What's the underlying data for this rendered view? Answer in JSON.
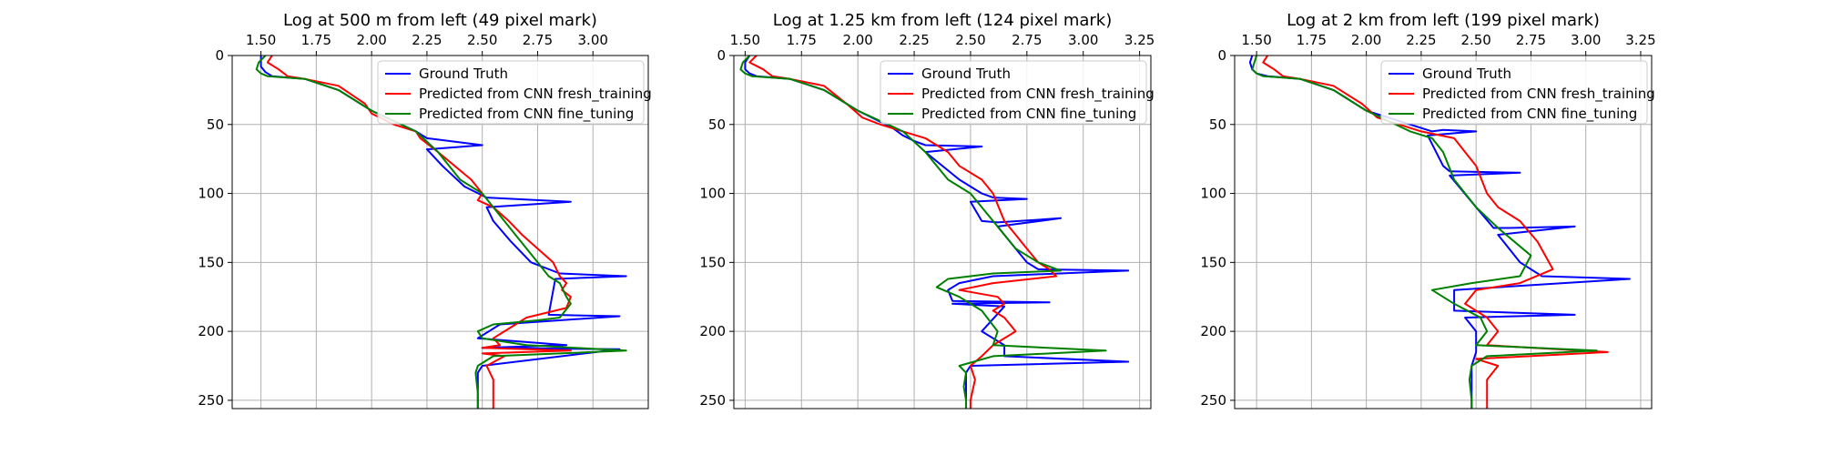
{
  "chart_data": [
    {
      "type": "line",
      "title": "Log at 500 m from left (49 pixel mark)",
      "xlim": [
        1.37,
        3.25
      ],
      "ylim": [
        256,
        0
      ],
      "xticks": [
        "1.50",
        "1.75",
        "2.00",
        "2.25",
        "2.50",
        "2.75",
        "3.00"
      ],
      "yticks": [
        "0",
        "50",
        "100",
        "150",
        "200",
        "250"
      ],
      "grid": true,
      "legend_position": "top-right",
      "series": [
        {
          "name": "Ground Truth",
          "color": "#0000ff",
          "x": [
            1.5,
            1.5,
            1.52,
            1.55,
            1.7,
            1.85,
            2.0,
            2.2,
            2.25,
            2.5,
            2.25,
            2.32,
            2.42,
            2.52,
            2.9,
            2.52,
            2.55,
            2.63,
            2.72,
            2.85,
            3.15,
            2.83,
            2.8,
            3.12,
            2.58,
            2.48,
            2.88,
            2.5,
            3.12,
            2.5,
            2.48,
            2.48,
            2.48
          ],
          "y": [
            0,
            8,
            12,
            15,
            17,
            25,
            40,
            55,
            60,
            65,
            68,
            80,
            95,
            103,
            106,
            110,
            120,
            135,
            150,
            158,
            160,
            162,
            188,
            189,
            195,
            205,
            210,
            212,
            213,
            225,
            230,
            245,
            256
          ]
        },
        {
          "name": "Predicted from CNN fresh_training",
          "color": "#ff0000",
          "x": [
            1.55,
            1.53,
            1.58,
            1.62,
            1.7,
            1.85,
            1.97,
            2.0,
            2.1,
            2.2,
            2.22,
            2.3,
            2.45,
            2.5,
            2.48,
            2.55,
            2.62,
            2.68,
            2.75,
            2.82,
            2.85,
            2.88,
            2.86,
            2.9,
            2.88,
            2.7,
            2.6,
            2.55,
            2.58,
            2.5,
            2.9,
            2.5,
            2.6,
            2.52,
            2.55,
            2.55,
            2.55
          ],
          "y": [
            0,
            5,
            10,
            15,
            17,
            22,
            35,
            42,
            50,
            55,
            60,
            70,
            90,
            100,
            105,
            110,
            120,
            130,
            140,
            150,
            160,
            165,
            170,
            175,
            183,
            190,
            200,
            205,
            210,
            212,
            214,
            216,
            218,
            225,
            235,
            250,
            256
          ]
        },
        {
          "name": "Predicted from CNN fine_tuning",
          "color": "#008000",
          "x": [
            1.52,
            1.49,
            1.48,
            1.5,
            1.53,
            1.7,
            1.85,
            2.0,
            2.2,
            2.3,
            2.4,
            2.5,
            2.55,
            2.65,
            2.75,
            2.8,
            2.85,
            2.88,
            2.9,
            2.85,
            2.75,
            2.55,
            2.48,
            2.5,
            2.7,
            3.15,
            2.55,
            2.48,
            2.47,
            2.48,
            2.48
          ],
          "y": [
            0,
            5,
            10,
            13,
            15,
            17,
            25,
            40,
            55,
            70,
            90,
            100,
            110,
            130,
            150,
            160,
            165,
            175,
            180,
            190,
            192,
            195,
            200,
            205,
            210,
            214,
            218,
            225,
            230,
            245,
            256
          ]
        }
      ]
    },
    {
      "type": "line",
      "title": "Log at 1.25 km from left (124 pixel mark)",
      "xlim": [
        1.45,
        3.3
      ],
      "ylim": [
        256,
        0
      ],
      "xticks": [
        "1.50",
        "1.75",
        "2.00",
        "2.25",
        "2.50",
        "2.75",
        "3.00",
        "3.25"
      ],
      "yticks": [
        "0",
        "50",
        "100",
        "150",
        "200",
        "250"
      ],
      "grid": true,
      "legend_position": "top-right",
      "series": [
        {
          "name": "Ground Truth",
          "color": "#0000ff",
          "x": [
            1.52,
            1.5,
            1.5,
            1.52,
            1.55,
            1.7,
            1.85,
            2.0,
            2.1,
            2.15,
            2.2,
            2.25,
            2.3,
            2.55,
            2.3,
            2.45,
            2.55,
            2.6,
            2.75,
            2.5,
            2.55,
            2.62,
            2.9,
            2.62,
            2.7,
            2.75,
            2.8,
            3.2,
            2.6,
            2.45,
            2.4,
            2.42,
            2.85,
            2.42,
            2.65,
            2.55,
            2.65,
            2.65,
            3.2,
            2.5,
            2.48,
            2.48,
            2.48
          ],
          "y": [
            0,
            5,
            10,
            13,
            15,
            17,
            25,
            40,
            48,
            52,
            58,
            62,
            65,
            66,
            70,
            90,
            100,
            103,
            104,
            106,
            120,
            121,
            118,
            124,
            140,
            150,
            155,
            156,
            160,
            165,
            170,
            178,
            179,
            180,
            182,
            200,
            210,
            218,
            222,
            225,
            230,
            245,
            256
          ]
        },
        {
          "name": "Predicted from CNN fresh_training",
          "color": "#ff0000",
          "x": [
            1.55,
            1.52,
            1.58,
            1.62,
            1.7,
            1.85,
            1.95,
            2.02,
            2.1,
            2.2,
            2.3,
            2.4,
            2.45,
            2.55,
            2.6,
            2.65,
            2.7,
            2.75,
            2.8,
            2.85,
            2.88,
            2.6,
            2.45,
            2.62,
            2.65,
            2.6,
            2.65,
            2.7,
            2.6,
            2.55,
            2.5,
            2.52,
            2.5,
            2.5
          ],
          "y": [
            0,
            5,
            10,
            15,
            17,
            22,
            35,
            45,
            50,
            55,
            60,
            70,
            80,
            90,
            100,
            120,
            130,
            140,
            150,
            155,
            160,
            165,
            170,
            175,
            180,
            185,
            190,
            200,
            210,
            218,
            225,
            235,
            250,
            256
          ]
        },
        {
          "name": "Predicted from CNN fine_tuning",
          "color": "#008000",
          "x": [
            1.52,
            1.49,
            1.48,
            1.5,
            1.53,
            1.7,
            1.85,
            2.0,
            2.2,
            2.3,
            2.4,
            2.5,
            2.6,
            2.7,
            2.8,
            2.9,
            2.6,
            2.4,
            2.35,
            2.45,
            2.55,
            2.62,
            2.6,
            3.1,
            2.6,
            2.45,
            2.48,
            2.47,
            2.48,
            2.48
          ],
          "y": [
            0,
            5,
            10,
            13,
            15,
            17,
            25,
            40,
            55,
            70,
            90,
            100,
            120,
            140,
            150,
            156,
            158,
            162,
            168,
            175,
            185,
            200,
            210,
            214,
            218,
            225,
            230,
            240,
            250,
            256
          ]
        }
      ]
    },
    {
      "type": "line",
      "title": "Log at 2 km from left (199 pixel mark)",
      "xlim": [
        1.4,
        3.3
      ],
      "ylim": [
        256,
        0
      ],
      "xticks": [
        "1.50",
        "1.75",
        "2.00",
        "2.25",
        "2.50",
        "2.75",
        "3.00",
        "3.25"
      ],
      "yticks": [
        "0",
        "50",
        "100",
        "150",
        "200",
        "250"
      ],
      "grid": true,
      "legend_position": "top-right",
      "series": [
        {
          "name": "Ground Truth",
          "color": "#0000ff",
          "x": [
            1.48,
            1.47,
            1.48,
            1.5,
            1.55,
            1.7,
            1.85,
            2.0,
            2.2,
            2.3,
            2.35,
            2.5,
            2.28,
            2.35,
            2.38,
            2.7,
            2.38,
            2.5,
            2.58,
            2.65,
            2.95,
            2.6,
            2.7,
            2.8,
            3.2,
            2.4,
            2.4,
            2.95,
            2.45,
            2.5,
            2.5,
            2.48,
            2.48,
            2.48
          ],
          "y": [
            0,
            5,
            10,
            13,
            15,
            17,
            25,
            40,
            50,
            55,
            54,
            55,
            58,
            80,
            84,
            85,
            87,
            110,
            125,
            125,
            124,
            130,
            150,
            160,
            162,
            170,
            185,
            188,
            190,
            200,
            215,
            225,
            245,
            256
          ]
        },
        {
          "name": "Predicted from CNN fresh_training",
          "color": "#ff0000",
          "x": [
            1.55,
            1.53,
            1.58,
            1.62,
            1.7,
            1.85,
            1.98,
            2.05,
            2.15,
            2.25,
            2.4,
            2.45,
            2.5,
            2.55,
            2.6,
            2.7,
            2.78,
            2.85,
            2.7,
            2.5,
            2.45,
            2.55,
            2.6,
            2.55,
            3.1,
            2.5,
            2.6,
            2.55,
            2.55,
            2.55
          ],
          "y": [
            0,
            5,
            10,
            15,
            17,
            22,
            35,
            45,
            50,
            55,
            60,
            70,
            80,
            100,
            110,
            120,
            135,
            155,
            165,
            170,
            180,
            190,
            200,
            210,
            215,
            220,
            225,
            235,
            250,
            256
          ]
        },
        {
          "name": "Predicted from CNN fine_tuning",
          "color": "#008000",
          "x": [
            1.5,
            1.49,
            1.48,
            1.5,
            1.53,
            1.7,
            1.85,
            2.0,
            2.2,
            2.3,
            2.35,
            2.4,
            2.5,
            2.6,
            2.75,
            2.7,
            2.48,
            2.3,
            2.4,
            2.52,
            2.55,
            2.5,
            3.05,
            2.55,
            2.48,
            2.47,
            2.48,
            2.48
          ],
          "y": [
            0,
            5,
            10,
            13,
            15,
            17,
            25,
            40,
            55,
            60,
            70,
            90,
            110,
            125,
            145,
            160,
            165,
            170,
            180,
            190,
            200,
            210,
            214,
            218,
            225,
            235,
            250,
            256
          ]
        }
      ]
    }
  ]
}
